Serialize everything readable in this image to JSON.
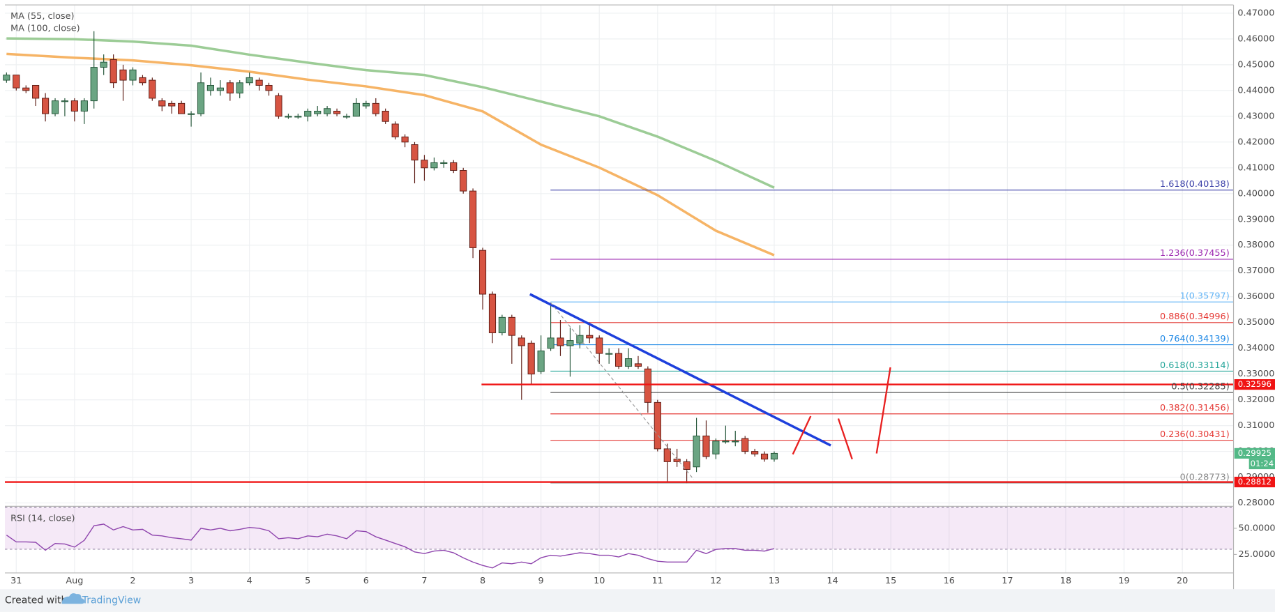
{
  "chart_data": [
    {
      "type": "candlestick",
      "x": [
        -0.167,
        0,
        0.167,
        0.333,
        0.5,
        0.667,
        0.833,
        1,
        1.167,
        1.333,
        1.5,
        1.667,
        1.833,
        2,
        2.167,
        2.333,
        2.5,
        2.667,
        2.833,
        3,
        3.167,
        3.333,
        3.5,
        3.667,
        3.833,
        4,
        4.167,
        4.333,
        4.5,
        4.667,
        4.833,
        5,
        5.167,
        5.333,
        5.5,
        5.667,
        5.833,
        6,
        6.167,
        6.333,
        6.5,
        6.667,
        6.833,
        7,
        7.167,
        7.333,
        7.5,
        7.667,
        7.833,
        8,
        8.167,
        8.333,
        8.5,
        8.667,
        8.833,
        9,
        9.167,
        9.333,
        9.5,
        9.667,
        9.833,
        10,
        10.167,
        10.333,
        10.5,
        10.667,
        10.833,
        11,
        11.167,
        11.333,
        11.5,
        11.667,
        11.833,
        12,
        12.167,
        12.333,
        12.5,
        12.667,
        12.833,
        13
      ],
      "open": [
        0.444,
        0.446,
        0.441,
        0.442,
        0.437,
        0.431,
        0.436,
        0.436,
        0.432,
        0.436,
        0.449,
        0.452,
        0.448,
        0.444,
        0.445,
        0.444,
        0.436,
        0.435,
        0.435,
        0.431,
        0.431,
        0.44,
        0.44,
        0.443,
        0.439,
        0.443,
        0.444,
        0.442,
        0.438,
        0.43,
        0.43,
        0.43,
        0.431,
        0.431,
        0.432,
        0.43,
        0.43,
        0.434,
        0.435,
        0.432,
        0.427,
        0.422,
        0.419,
        0.413,
        0.41,
        0.412,
        0.412,
        0.409,
        0.401,
        0.378,
        0.361,
        0.346,
        0.352,
        0.344,
        0.342,
        0.331,
        0.34,
        0.344,
        0.341,
        0.342,
        0.345,
        0.344,
        0.338,
        0.338,
        0.333,
        0.334,
        0.332,
        0.319,
        0.301,
        0.297,
        0.296,
        0.294,
        0.306,
        0.299,
        0.304,
        0.304,
        0.305,
        0.3,
        0.299,
        0.297
      ],
      "high": [
        0.447,
        0.446,
        0.442,
        0.442,
        0.439,
        0.437,
        0.437,
        0.437,
        0.437,
        0.463,
        0.454,
        0.454,
        0.45,
        0.449,
        0.446,
        0.445,
        0.437,
        0.436,
        0.436,
        0.432,
        0.447,
        0.445,
        0.444,
        0.444,
        0.444,
        0.447,
        0.445,
        0.443,
        0.439,
        0.431,
        0.431,
        0.433,
        0.434,
        0.434,
        0.433,
        0.431,
        0.437,
        0.436,
        0.437,
        0.433,
        0.428,
        0.423,
        0.42,
        0.415,
        0.414,
        0.413,
        0.413,
        0.41,
        0.402,
        0.379,
        0.362,
        0.353,
        0.353,
        0.345,
        0.343,
        0.345,
        0.357,
        0.351,
        0.348,
        0.349,
        0.35,
        0.345,
        0.34,
        0.34,
        0.34,
        0.337,
        0.333,
        0.32,
        0.303,
        0.301,
        0.297,
        0.313,
        0.312,
        0.305,
        0.31,
        0.308,
        0.306,
        0.301,
        0.3,
        0.3
      ],
      "low": [
        0.443,
        0.44,
        0.439,
        0.434,
        0.428,
        0.43,
        0.43,
        0.428,
        0.427,
        0.433,
        0.446,
        0.441,
        0.436,
        0.442,
        0.442,
        0.436,
        0.432,
        0.431,
        0.431,
        0.426,
        0.43,
        0.438,
        0.438,
        0.436,
        0.437,
        0.442,
        0.44,
        0.438,
        0.429,
        0.429,
        0.429,
        0.428,
        0.43,
        0.43,
        0.43,
        0.429,
        0.43,
        0.433,
        0.43,
        0.427,
        0.421,
        0.418,
        0.404,
        0.405,
        0.409,
        0.41,
        0.408,
        0.4,
        0.375,
        0.355,
        0.342,
        0.345,
        0.334,
        0.32,
        0.326,
        0.33,
        0.339,
        0.337,
        0.329,
        0.34,
        0.342,
        0.334,
        0.334,
        0.332,
        0.332,
        0.332,
        0.315,
        0.3,
        0.288,
        0.294,
        0.2877,
        0.292,
        0.297,
        0.297,
        0.303,
        0.302,
        0.299,
        0.298,
        0.296,
        0.296
      ],
      "close": [
        0.446,
        0.441,
        0.44,
        0.437,
        0.431,
        0.436,
        0.436,
        0.432,
        0.436,
        0.449,
        0.451,
        0.443,
        0.444,
        0.448,
        0.443,
        0.437,
        0.434,
        0.434,
        0.431,
        0.431,
        0.443,
        0.442,
        0.441,
        0.439,
        0.443,
        0.445,
        0.442,
        0.44,
        0.43,
        0.43,
        0.43,
        0.432,
        0.432,
        0.433,
        0.431,
        0.43,
        0.435,
        0.435,
        0.431,
        0.428,
        0.422,
        0.42,
        0.413,
        0.41,
        0.412,
        0.412,
        0.409,
        0.401,
        0.379,
        0.361,
        0.346,
        0.352,
        0.345,
        0.341,
        0.33,
        0.339,
        0.344,
        0.341,
        0.343,
        0.345,
        0.344,
        0.338,
        0.338,
        0.333,
        0.336,
        0.333,
        0.319,
        0.301,
        0.296,
        0.296,
        0.293,
        0.306,
        0.298,
        0.304,
        0.304,
        0.304,
        0.3,
        0.299,
        0.297,
        0.29925
      ],
      "up_color": "#6ba583",
      "down_color": "#d75442",
      "up_outline": "#225437",
      "down_outline": "#5b1a13",
      "series": [
        {
          "name": "MA (55, close)",
          "color": "#f6b466",
          "x": [
            -0.167,
            1,
            2,
            3,
            4,
            5,
            6,
            7,
            8,
            9,
            10,
            11,
            12,
            13
          ],
          "values": [
            0.4542,
            0.4527,
            0.4517,
            0.4498,
            0.4473,
            0.4442,
            0.4416,
            0.4382,
            0.4319,
            0.419,
            0.4101,
            0.3994,
            0.3856,
            0.3761
          ]
        },
        {
          "name": "MA (100, close)",
          "color": "#9ccc96",
          "x": [
            -0.167,
            1,
            2,
            3,
            4,
            5,
            6,
            7,
            8,
            9,
            10,
            11,
            12,
            13
          ],
          "values": [
            0.4602,
            0.4599,
            0.459,
            0.4574,
            0.4539,
            0.4508,
            0.4479,
            0.446,
            0.4413,
            0.4357,
            0.43,
            0.4221,
            0.4127,
            0.4023
          ]
        }
      ],
      "fib_start": 9.163,
      "fib_levels": [
        {
          "label": "1.618(0.40138)",
          "value": 0.40138,
          "color": "#3a3fa8"
        },
        {
          "label": "1.236(0.37455)",
          "value": 0.37455,
          "color": "#9c27b0"
        },
        {
          "label": "1(0.35797)",
          "value": 0.35797,
          "color": "#64b5f6"
        },
        {
          "label": "0.886(0.34996)",
          "value": 0.34996,
          "color": "#e53935"
        },
        {
          "label": "0.764(0.34139)",
          "value": 0.34139,
          "color": "#1e88e5"
        },
        {
          "label": "0.618(0.33114)",
          "value": 0.33114,
          "color": "#26a69a"
        },
        {
          "label": "0.5(0.32285)",
          "value": 0.32285,
          "color": "#444444"
        },
        {
          "label": "0.382(0.31456)",
          "value": 0.31456,
          "color": "#e53935"
        },
        {
          "label": "0.236(0.30431)",
          "value": 0.30431,
          "color": "#e53935"
        },
        {
          "label": "0(0.28773)",
          "value": 0.28773,
          "color": "#888888"
        }
      ],
      "price_lines": [
        {
          "value": 0.32596,
          "start": 7.98,
          "color": "#f01414"
        },
        {
          "value": 0.28812,
          "color": "#f01414"
        }
      ],
      "trendlines": [
        {
          "x": [
            8.81,
            13.97
          ],
          "values": [
            0.361,
            0.3023
          ],
          "color": "#1d3fdc",
          "width": 3
        },
        {
          "x": [
            9.163,
            11.62
          ],
          "values": [
            0.3578,
            0.2891
          ],
          "color": "#999999",
          "width": 1,
          "dashed": true
        }
      ],
      "last_price": 0.29925,
      "last_color": "#53b987",
      "countdown": "01:24",
      "xlim": [
        -0.195,
        20.878
      ],
      "ylim": [
        0.2787,
        0.4732
      ],
      "xticks": [
        {
          "value": 0,
          "label": "31"
        },
        {
          "value": 1,
          "label": "Aug"
        },
        2,
        3,
        4,
        5,
        6,
        7,
        8,
        9,
        10,
        11,
        12,
        13,
        14,
        15,
        16,
        17,
        18,
        19,
        20
      ],
      "yticks": [
        {
          "value": 0.28,
          "label": "0.28000"
        },
        {
          "value": 0.29,
          "label": "0.29000"
        },
        {
          "value": 0.3,
          "label": "0.30000"
        },
        {
          "value": 0.31,
          "label": "0.31000"
        },
        {
          "value": 0.32,
          "label": "0.32000"
        },
        {
          "value": 0.33,
          "label": "0.33000"
        },
        {
          "value": 0.34,
          "label": "0.34000"
        },
        {
          "value": 0.35,
          "label": "0.35000"
        },
        {
          "value": 0.36,
          "label": "0.36000"
        },
        {
          "value": 0.37,
          "label": "0.37000"
        },
        {
          "value": 0.38,
          "label": "0.38000"
        },
        {
          "value": 0.39,
          "label": "0.39000"
        },
        {
          "value": 0.4,
          "label": "0.40000"
        },
        {
          "value": 0.41,
          "label": "0.41000"
        },
        {
          "value": 0.42,
          "label": "0.42000"
        },
        {
          "value": 0.43,
          "label": "0.43000"
        },
        {
          "value": 0.44,
          "label": "0.44000"
        },
        {
          "value": 0.45,
          "label": "0.45000"
        },
        {
          "value": 0.46,
          "label": "0.46000"
        },
        {
          "value": 0.47,
          "label": "0.47000"
        }
      ],
      "grid": true
    },
    {
      "type": "line",
      "x": [
        -0.167,
        0,
        0.167,
        0.333,
        0.5,
        0.667,
        0.833,
        1,
        1.167,
        1.333,
        1.5,
        1.667,
        1.833,
        2,
        2.167,
        2.333,
        2.5,
        2.667,
        2.833,
        3,
        3.167,
        3.333,
        3.5,
        3.667,
        3.833,
        4,
        4.167,
        4.333,
        4.5,
        4.667,
        4.833,
        5,
        5.167,
        5.333,
        5.5,
        5.667,
        5.833,
        6,
        6.167,
        6.333,
        6.5,
        6.667,
        6.833,
        7,
        7.167,
        7.333,
        7.5,
        7.667,
        7.833,
        8,
        8.167,
        8.333,
        8.5,
        8.667,
        8.833,
        9,
        9.167,
        9.333,
        9.5,
        9.667,
        9.833,
        10,
        10.167,
        10.333,
        10.5,
        10.667,
        10.833,
        11,
        11.167,
        11.333,
        11.5,
        11.667,
        11.833,
        12,
        12.167,
        12.333,
        12.5,
        12.667,
        12.833,
        13
      ],
      "series": [
        {
          "name": "RSI (14, close)",
          "color": "#8e44ad",
          "values": [
            43.5,
            37,
            37,
            36.6,
            29,
            35.5,
            35,
            32,
            38.5,
            52.4,
            54,
            48.4,
            51.6,
            48.4,
            49,
            43.5,
            42.7,
            41,
            40,
            38.7,
            50,
            48.4,
            50,
            47.6,
            49,
            50.8,
            50,
            47.6,
            40,
            41,
            40,
            42.7,
            41.9,
            44.4,
            42.7,
            40,
            47.6,
            46.8,
            41.9,
            38.7,
            35.5,
            32.3,
            27.4,
            25.8,
            28.2,
            29,
            26.6,
            21.8,
            17.7,
            14.5,
            12.1,
            16.9,
            16.1,
            17.7,
            16.1,
            21.8,
            24.2,
            23.4,
            25,
            26.6,
            25.8,
            24.2,
            24.2,
            22.6,
            25.8,
            24.2,
            21,
            18.5,
            17.7,
            17.7,
            17.7,
            29,
            25.8,
            29.8,
            30.6,
            30.6,
            29,
            29,
            28.2,
            30.6
          ]
        }
      ],
      "band": [
        30,
        70
      ],
      "band_color": "#9c27b0",
      "xlim": [
        -0.195,
        20.878
      ],
      "ylim": [
        7.3,
        71
      ],
      "yticks": [
        {
          "value": 50,
          "label": "50.0000"
        },
        {
          "value": 25,
          "label": "25.0000"
        }
      ],
      "grid": true
    }
  ],
  "footer": {
    "text": "Created with",
    "brand": "TradingView"
  }
}
